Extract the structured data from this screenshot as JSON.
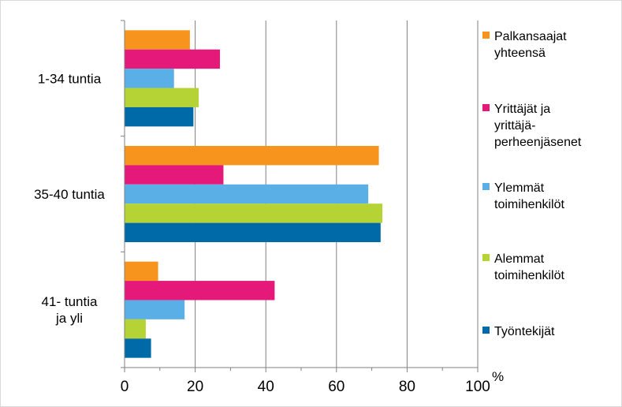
{
  "chart_data": {
    "type": "bar",
    "orientation": "horizontal",
    "title": "",
    "xlabel": "",
    "ylabel": "",
    "unit": "%",
    "xlim": [
      0,
      100
    ],
    "x_ticks": [
      "0",
      "20",
      "40",
      "60",
      "80",
      "100"
    ],
    "grid": "vertical",
    "legend_position": "right",
    "categories": [
      "1-34 tuntia",
      "35-40 tuntia",
      "41- tuntia ja yli"
    ],
    "series": [
      {
        "name": "Palkansaajat yhteensä",
        "color": "#f7941d",
        "values": [
          18.5,
          72,
          9.5
        ]
      },
      {
        "name": "Yrittäjät ja yrittäjä-perheenjäsenet",
        "color": "#e5197a",
        "values": [
          27,
          28,
          42.5
        ]
      },
      {
        "name": "Ylemmät toimihenkilöt",
        "color": "#5aafe6",
        "values": [
          14,
          69,
          17
        ]
      },
      {
        "name": "Alemmat toimihenkilöt",
        "color": "#b5d334",
        "values": [
          21,
          73,
          6
        ]
      },
      {
        "name": "Työntekijät",
        "color": "#0069a8",
        "values": [
          19.5,
          72.5,
          7.5
        ]
      }
    ]
  },
  "legend": {
    "items": [
      {
        "line1": "Palkansaajat",
        "line2": "yhteensä",
        "line3": ""
      },
      {
        "line1": "Yrittäjät ja",
        "line2": "yrittäjä-",
        "line3": "perheenjäsenet"
      },
      {
        "line1": "Ylemmät",
        "line2": "toimihenkilöt",
        "line3": ""
      },
      {
        "line1": "Alemmat",
        "line2": "toimihenkilöt",
        "line3": ""
      },
      {
        "line1": "Työntekijät",
        "line2": "",
        "line3": ""
      }
    ]
  },
  "category_lines": [
    [
      "1-34 tuntia"
    ],
    [
      "35-40 tuntia"
    ],
    [
      "41- tuntia",
      "ja yli"
    ]
  ]
}
